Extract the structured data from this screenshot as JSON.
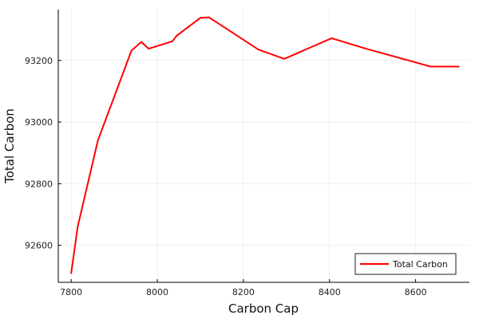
{
  "chart_data": {
    "type": "line",
    "title": "",
    "xlabel": "Carbon Cap",
    "ylabel": "Total Carbon",
    "xlim": [
      7770,
      8725
    ],
    "ylim": [
      92480,
      93365
    ],
    "xticks": [
      7800,
      8000,
      8200,
      8400,
      8600
    ],
    "yticks": [
      92600,
      92800,
      93000,
      93200
    ],
    "grid": true,
    "legend": "bottom-right",
    "series": [
      {
        "name": "Total Carbon",
        "color": "#ff0000",
        "x": [
          7800,
          7815,
          7862,
          7940,
          7963,
          7980,
          8035,
          8045,
          8100,
          8120,
          8235,
          8295,
          8405,
          8480,
          8635,
          8700
        ],
        "y": [
          92510,
          92660,
          92940,
          93232,
          93260,
          93238,
          93262,
          93280,
          93338,
          93340,
          93235,
          93205,
          93272,
          93240,
          93180,
          93180
        ]
      }
    ]
  }
}
